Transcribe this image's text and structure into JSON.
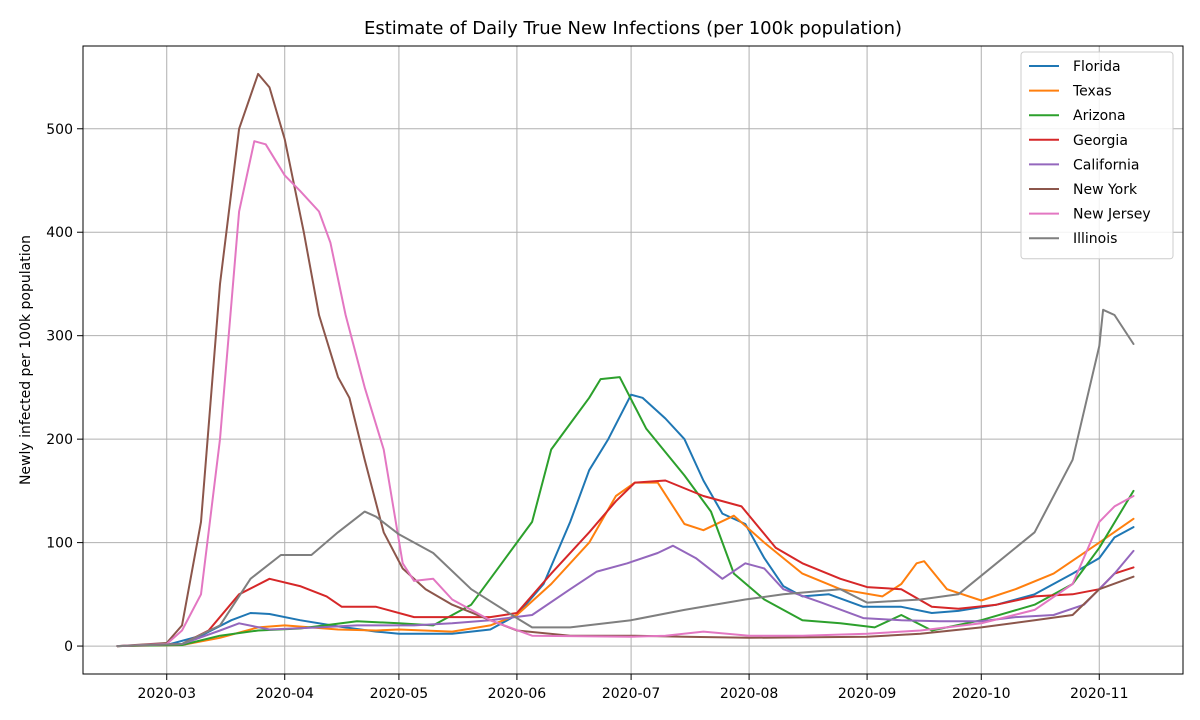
{
  "chart_data": {
    "type": "line",
    "title": "Estimate of Daily True New Infections (per 100k population)",
    "xlabel": "",
    "ylabel": "Newly infected per 100k population",
    "x_range": [
      "2020-02-08",
      "2020-11-23"
    ],
    "ylim": [
      -27,
      580
    ],
    "x_ticks": [
      "2020-03",
      "2020-04",
      "2020-05",
      "2020-06",
      "2020-07",
      "2020-08",
      "2020-09",
      "2020-10",
      "2020-11"
    ],
    "y_ticks": [
      0,
      100,
      200,
      300,
      400,
      500
    ],
    "grid": true,
    "legend_position": "top-right",
    "series": [
      {
        "name": "Florida",
        "color": "#1f77b4",
        "points": [
          [
            "2020-02-17",
            0
          ],
          [
            "2020-03-01",
            1
          ],
          [
            "2020-03-10",
            10
          ],
          [
            "2020-03-18",
            25
          ],
          [
            "2020-03-23",
            32
          ],
          [
            "2020-03-28",
            31
          ],
          [
            "2020-04-05",
            25
          ],
          [
            "2020-04-15",
            19
          ],
          [
            "2020-04-25",
            14
          ],
          [
            "2020-05-01",
            12
          ],
          [
            "2020-05-15",
            12
          ],
          [
            "2020-05-25",
            16
          ],
          [
            "2020-06-01",
            30
          ],
          [
            "2020-06-08",
            60
          ],
          [
            "2020-06-15",
            120
          ],
          [
            "2020-06-20",
            170
          ],
          [
            "2020-06-25",
            200
          ],
          [
            "2020-07-01",
            243
          ],
          [
            "2020-07-04",
            240
          ],
          [
            "2020-07-10",
            220
          ],
          [
            "2020-07-15",
            200
          ],
          [
            "2020-07-20",
            160
          ],
          [
            "2020-07-25",
            128
          ],
          [
            "2020-07-31",
            118
          ],
          [
            "2020-08-05",
            85
          ],
          [
            "2020-08-10",
            58
          ],
          [
            "2020-08-15",
            48
          ],
          [
            "2020-08-22",
            50
          ],
          [
            "2020-08-31",
            38
          ],
          [
            "2020-09-10",
            38
          ],
          [
            "2020-09-18",
            32
          ],
          [
            "2020-09-25",
            34
          ],
          [
            "2020-10-05",
            40
          ],
          [
            "2020-10-15",
            50
          ],
          [
            "2020-10-25",
            70
          ],
          [
            "2020-11-01",
            85
          ],
          [
            "2020-11-05",
            105
          ],
          [
            "2020-11-10",
            115
          ]
        ]
      },
      {
        "name": "Texas",
        "color": "#ff7f0e",
        "points": [
          [
            "2020-02-17",
            0
          ],
          [
            "2020-03-05",
            1
          ],
          [
            "2020-03-15",
            8
          ],
          [
            "2020-03-25",
            18
          ],
          [
            "2020-04-01",
            20
          ],
          [
            "2020-04-15",
            16
          ],
          [
            "2020-04-25",
            15
          ],
          [
            "2020-05-01",
            16
          ],
          [
            "2020-05-15",
            14
          ],
          [
            "2020-05-25",
            20
          ],
          [
            "2020-06-01",
            30
          ],
          [
            "2020-06-10",
            60
          ],
          [
            "2020-06-20",
            100
          ],
          [
            "2020-06-27",
            145
          ],
          [
            "2020-07-02",
            158
          ],
          [
            "2020-07-08",
            158
          ],
          [
            "2020-07-15",
            118
          ],
          [
            "2020-07-20",
            112
          ],
          [
            "2020-07-28",
            126
          ],
          [
            "2020-08-05",
            100
          ],
          [
            "2020-08-15",
            70
          ],
          [
            "2020-08-25",
            55
          ],
          [
            "2020-09-05",
            48
          ],
          [
            "2020-09-10",
            60
          ],
          [
            "2020-09-14",
            80
          ],
          [
            "2020-09-16",
            82
          ],
          [
            "2020-09-22",
            55
          ],
          [
            "2020-10-01",
            44
          ],
          [
            "2020-10-10",
            55
          ],
          [
            "2020-10-20",
            70
          ],
          [
            "2020-11-01",
            100
          ],
          [
            "2020-11-10",
            123
          ]
        ]
      },
      {
        "name": "Arizona",
        "color": "#2ca02c",
        "points": [
          [
            "2020-02-17",
            0
          ],
          [
            "2020-03-05",
            1
          ],
          [
            "2020-03-15",
            10
          ],
          [
            "2020-03-25",
            15
          ],
          [
            "2020-04-05",
            17
          ],
          [
            "2020-04-20",
            24
          ],
          [
            "2020-05-01",
            22
          ],
          [
            "2020-05-10",
            20
          ],
          [
            "2020-05-20",
            40
          ],
          [
            "2020-05-28",
            80
          ],
          [
            "2020-06-05",
            120
          ],
          [
            "2020-06-10",
            190
          ],
          [
            "2020-06-15",
            215
          ],
          [
            "2020-06-20",
            240
          ],
          [
            "2020-06-23",
            258
          ],
          [
            "2020-06-28",
            260
          ],
          [
            "2020-07-05",
            210
          ],
          [
            "2020-07-15",
            165
          ],
          [
            "2020-07-22",
            130
          ],
          [
            "2020-07-28",
            70
          ],
          [
            "2020-08-05",
            45
          ],
          [
            "2020-08-15",
            25
          ],
          [
            "2020-08-25",
            22
          ],
          [
            "2020-09-03",
            18
          ],
          [
            "2020-09-10",
            30
          ],
          [
            "2020-09-18",
            15
          ],
          [
            "2020-10-01",
            25
          ],
          [
            "2020-10-15",
            40
          ],
          [
            "2020-10-25",
            60
          ],
          [
            "2020-11-01",
            95
          ],
          [
            "2020-11-10",
            150
          ]
        ]
      },
      {
        "name": "Georgia",
        "color": "#d62728",
        "points": [
          [
            "2020-02-17",
            0
          ],
          [
            "2020-03-05",
            2
          ],
          [
            "2020-03-12",
            15
          ],
          [
            "2020-03-20",
            50
          ],
          [
            "2020-03-28",
            65
          ],
          [
            "2020-04-05",
            58
          ],
          [
            "2020-04-12",
            48
          ],
          [
            "2020-04-16",
            38
          ],
          [
            "2020-04-25",
            38
          ],
          [
            "2020-05-05",
            28
          ],
          [
            "2020-05-15",
            28
          ],
          [
            "2020-05-25",
            28
          ],
          [
            "2020-06-01",
            32
          ],
          [
            "2020-06-10",
            70
          ],
          [
            "2020-06-20",
            110
          ],
          [
            "2020-06-27",
            140
          ],
          [
            "2020-07-02",
            158
          ],
          [
            "2020-07-10",
            160
          ],
          [
            "2020-07-20",
            145
          ],
          [
            "2020-07-30",
            135
          ],
          [
            "2020-08-08",
            95
          ],
          [
            "2020-08-15",
            80
          ],
          [
            "2020-08-25",
            65
          ],
          [
            "2020-09-01",
            57
          ],
          [
            "2020-09-10",
            55
          ],
          [
            "2020-09-18",
            38
          ],
          [
            "2020-09-25",
            36
          ],
          [
            "2020-10-05",
            40
          ],
          [
            "2020-10-15",
            48
          ],
          [
            "2020-10-25",
            50
          ],
          [
            "2020-11-01",
            55
          ],
          [
            "2020-11-05",
            70
          ],
          [
            "2020-11-10",
            76
          ]
        ]
      },
      {
        "name": "California",
        "color": "#9467bd",
        "points": [
          [
            "2020-02-17",
            0
          ],
          [
            "2020-03-05",
            2
          ],
          [
            "2020-03-15",
            15
          ],
          [
            "2020-03-20",
            22
          ],
          [
            "2020-03-28",
            16
          ],
          [
            "2020-04-10",
            18
          ],
          [
            "2020-04-20",
            20
          ],
          [
            "2020-05-05",
            20
          ],
          [
            "2020-05-15",
            22
          ],
          [
            "2020-05-25",
            25
          ],
          [
            "2020-06-05",
            30
          ],
          [
            "2020-06-15",
            55
          ],
          [
            "2020-06-22",
            72
          ],
          [
            "2020-06-30",
            80
          ],
          [
            "2020-07-08",
            90
          ],
          [
            "2020-07-12",
            97
          ],
          [
            "2020-07-18",
            85
          ],
          [
            "2020-07-25",
            65
          ],
          [
            "2020-07-31",
            80
          ],
          [
            "2020-08-05",
            75
          ],
          [
            "2020-08-10",
            55
          ],
          [
            "2020-08-20",
            42
          ],
          [
            "2020-08-31",
            27
          ],
          [
            "2020-09-10",
            25
          ],
          [
            "2020-09-20",
            24
          ],
          [
            "2020-10-01",
            24
          ],
          [
            "2020-10-10",
            28
          ],
          [
            "2020-10-20",
            30
          ],
          [
            "2020-10-28",
            40
          ],
          [
            "2020-11-05",
            70
          ],
          [
            "2020-11-10",
            92
          ]
        ]
      },
      {
        "name": "New York",
        "color": "#8c564b",
        "points": [
          [
            "2020-02-17",
            0
          ],
          [
            "2020-03-01",
            3
          ],
          [
            "2020-03-05",
            20
          ],
          [
            "2020-03-10",
            120
          ],
          [
            "2020-03-15",
            350
          ],
          [
            "2020-03-20",
            500
          ],
          [
            "2020-03-25",
            553
          ],
          [
            "2020-03-28",
            540
          ],
          [
            "2020-04-01",
            490
          ],
          [
            "2020-04-06",
            400
          ],
          [
            "2020-04-10",
            320
          ],
          [
            "2020-04-15",
            260
          ],
          [
            "2020-04-18",
            240
          ],
          [
            "2020-04-22",
            180
          ],
          [
            "2020-04-27",
            110
          ],
          [
            "2020-05-02",
            75
          ],
          [
            "2020-05-08",
            55
          ],
          [
            "2020-05-15",
            40
          ],
          [
            "2020-05-25",
            25
          ],
          [
            "2020-06-01",
            15
          ],
          [
            "2020-06-15",
            10
          ],
          [
            "2020-07-01",
            10
          ],
          [
            "2020-07-15",
            9
          ],
          [
            "2020-08-01",
            8
          ],
          [
            "2020-09-01",
            9
          ],
          [
            "2020-09-15",
            12
          ],
          [
            "2020-10-01",
            18
          ],
          [
            "2020-10-15",
            25
          ],
          [
            "2020-10-25",
            30
          ],
          [
            "2020-11-01",
            55
          ],
          [
            "2020-11-10",
            67
          ]
        ]
      },
      {
        "name": "New Jersey",
        "color": "#e377c2",
        "points": [
          [
            "2020-02-17",
            0
          ],
          [
            "2020-03-01",
            2
          ],
          [
            "2020-03-05",
            15
          ],
          [
            "2020-03-10",
            50
          ],
          [
            "2020-03-15",
            200
          ],
          [
            "2020-03-20",
            420
          ],
          [
            "2020-03-24",
            488
          ],
          [
            "2020-03-27",
            485
          ],
          [
            "2020-04-01",
            455
          ],
          [
            "2020-04-05",
            440
          ],
          [
            "2020-04-10",
            420
          ],
          [
            "2020-04-13",
            390
          ],
          [
            "2020-04-17",
            320
          ],
          [
            "2020-04-22",
            250
          ],
          [
            "2020-04-27",
            190
          ],
          [
            "2020-05-02",
            80
          ],
          [
            "2020-05-05",
            63
          ],
          [
            "2020-05-10",
            65
          ],
          [
            "2020-05-15",
            45
          ],
          [
            "2020-05-25",
            25
          ],
          [
            "2020-06-05",
            10
          ],
          [
            "2020-07-01",
            9
          ],
          [
            "2020-07-10",
            10
          ],
          [
            "2020-07-20",
            14
          ],
          [
            "2020-08-01",
            10
          ],
          [
            "2020-08-15",
            10
          ],
          [
            "2020-09-01",
            12
          ],
          [
            "2020-09-15",
            15
          ],
          [
            "2020-10-01",
            22
          ],
          [
            "2020-10-15",
            35
          ],
          [
            "2020-10-25",
            60
          ],
          [
            "2020-11-01",
            120
          ],
          [
            "2020-11-05",
            135
          ],
          [
            "2020-11-10",
            145
          ]
        ]
      },
      {
        "name": "Illinois",
        "color": "#7f7f7f",
        "points": [
          [
            "2020-02-17",
            0
          ],
          [
            "2020-03-05",
            2
          ],
          [
            "2020-03-15",
            20
          ],
          [
            "2020-03-23",
            65
          ],
          [
            "2020-03-31",
            88
          ],
          [
            "2020-04-08",
            88
          ],
          [
            "2020-04-15",
            110
          ],
          [
            "2020-04-22",
            130
          ],
          [
            "2020-04-25",
            125
          ],
          [
            "2020-05-01",
            108
          ],
          [
            "2020-05-10",
            90
          ],
          [
            "2020-05-20",
            55
          ],
          [
            "2020-06-01",
            27
          ],
          [
            "2020-06-05",
            18
          ],
          [
            "2020-06-15",
            18
          ],
          [
            "2020-07-01",
            25
          ],
          [
            "2020-07-15",
            35
          ],
          [
            "2020-07-31",
            45
          ],
          [
            "2020-08-10",
            50
          ],
          [
            "2020-08-25",
            55
          ],
          [
            "2020-09-01",
            42
          ],
          [
            "2020-09-15",
            45
          ],
          [
            "2020-09-25",
            50
          ],
          [
            "2020-10-05",
            80
          ],
          [
            "2020-10-15",
            110
          ],
          [
            "2020-10-25",
            180
          ],
          [
            "2020-11-01",
            290
          ],
          [
            "2020-11-02",
            325
          ],
          [
            "2020-11-05",
            320
          ],
          [
            "2020-11-10",
            292
          ]
        ]
      }
    ]
  }
}
